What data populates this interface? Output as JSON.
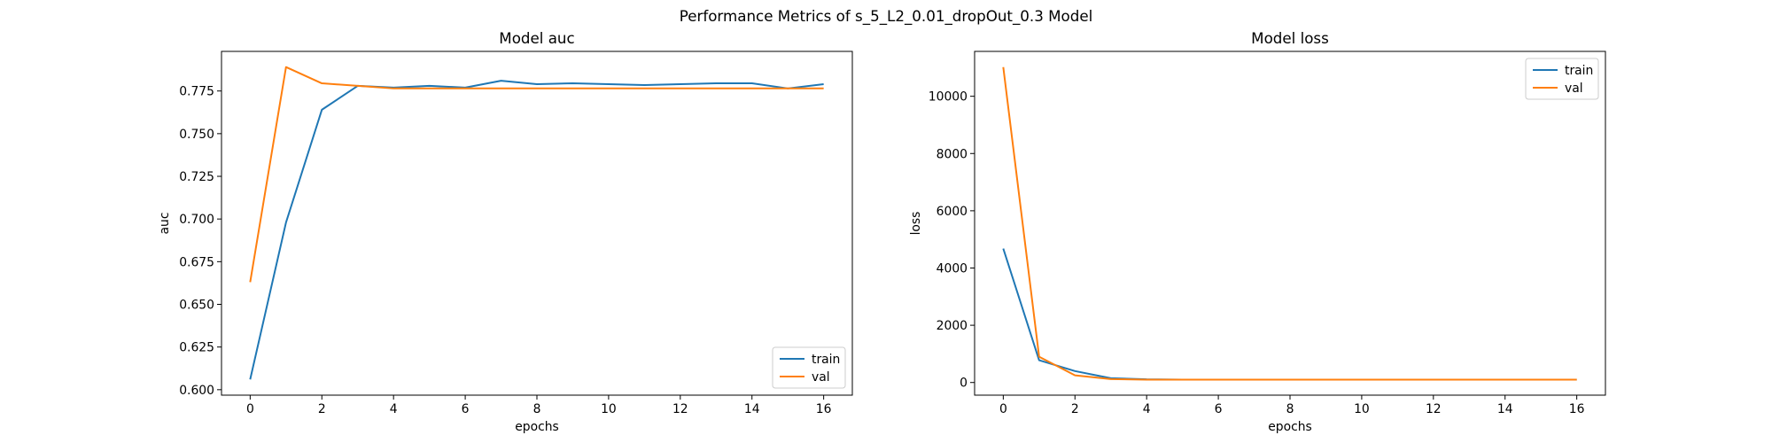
{
  "figure": {
    "suptitle": "Performance Metrics of s_5_L2_0.01_dropOut_0.3 Model"
  },
  "chart_data": [
    {
      "type": "line",
      "title": "Model auc",
      "xlabel": "epochs",
      "ylabel": "auc",
      "xlim": [
        -0.8,
        16.8
      ],
      "ylim": [
        0.5968,
        0.7982
      ],
      "xticks": [
        0,
        2,
        4,
        6,
        8,
        10,
        12,
        14,
        16
      ],
      "xtick_labels": [
        "0",
        "2",
        "4",
        "6",
        "8",
        "10",
        "12",
        "14",
        "16"
      ],
      "yticks": [
        0.6,
        0.625,
        0.65,
        0.675,
        0.7,
        0.725,
        0.75,
        0.775
      ],
      "ytick_labels": [
        "0.600",
        "0.625",
        "0.650",
        "0.675",
        "0.700",
        "0.725",
        "0.750",
        "0.775"
      ],
      "legend_position": "lower-right",
      "grid": false,
      "x": [
        0,
        1,
        2,
        3,
        4,
        5,
        6,
        7,
        8,
        9,
        10,
        11,
        12,
        13,
        14,
        15,
        16
      ],
      "series": [
        {
          "name": "train",
          "color": "#1f77b4",
          "values": [
            0.606,
            0.698,
            0.764,
            0.778,
            0.777,
            0.778,
            0.777,
            0.781,
            0.779,
            0.7795,
            0.779,
            0.7785,
            0.779,
            0.7795,
            0.7795,
            0.7765,
            0.779
          ]
        },
        {
          "name": "val",
          "color": "#ff7f0e",
          "values": [
            0.663,
            0.789,
            0.7795,
            0.778,
            0.7765,
            0.7765,
            0.7765,
            0.7765,
            0.7765,
            0.7765,
            0.7765,
            0.7765,
            0.7765,
            0.7765,
            0.7765,
            0.7765,
            0.7765
          ]
        }
      ]
    },
    {
      "type": "line",
      "title": "Model loss",
      "xlabel": "epochs",
      "ylabel": "loss",
      "xlim": [
        -0.8,
        16.8
      ],
      "ylim": [
        -442,
        11568
      ],
      "xticks": [
        0,
        2,
        4,
        6,
        8,
        10,
        12,
        14,
        16
      ],
      "xtick_labels": [
        "0",
        "2",
        "4",
        "6",
        "8",
        "10",
        "12",
        "14",
        "16"
      ],
      "yticks": [
        0,
        2000,
        4000,
        6000,
        8000,
        10000
      ],
      "ytick_labels": [
        "0",
        "2000",
        "4000",
        "6000",
        "8000",
        "10000"
      ],
      "legend_position": "upper-right",
      "grid": false,
      "x": [
        0,
        1,
        2,
        3,
        4,
        5,
        6,
        7,
        8,
        9,
        10,
        11,
        12,
        13,
        14,
        15,
        16
      ],
      "series": [
        {
          "name": "train",
          "color": "#1f77b4",
          "values": [
            4680,
            780,
            400,
            150,
            110,
            100,
            100,
            100,
            100,
            100,
            100,
            100,
            100,
            100,
            100,
            100,
            100
          ]
        },
        {
          "name": "val",
          "color": "#ff7f0e",
          "values": [
            11020,
            900,
            250,
            120,
            100,
            100,
            100,
            100,
            100,
            100,
            100,
            100,
            100,
            100,
            100,
            100,
            100
          ]
        }
      ]
    }
  ]
}
